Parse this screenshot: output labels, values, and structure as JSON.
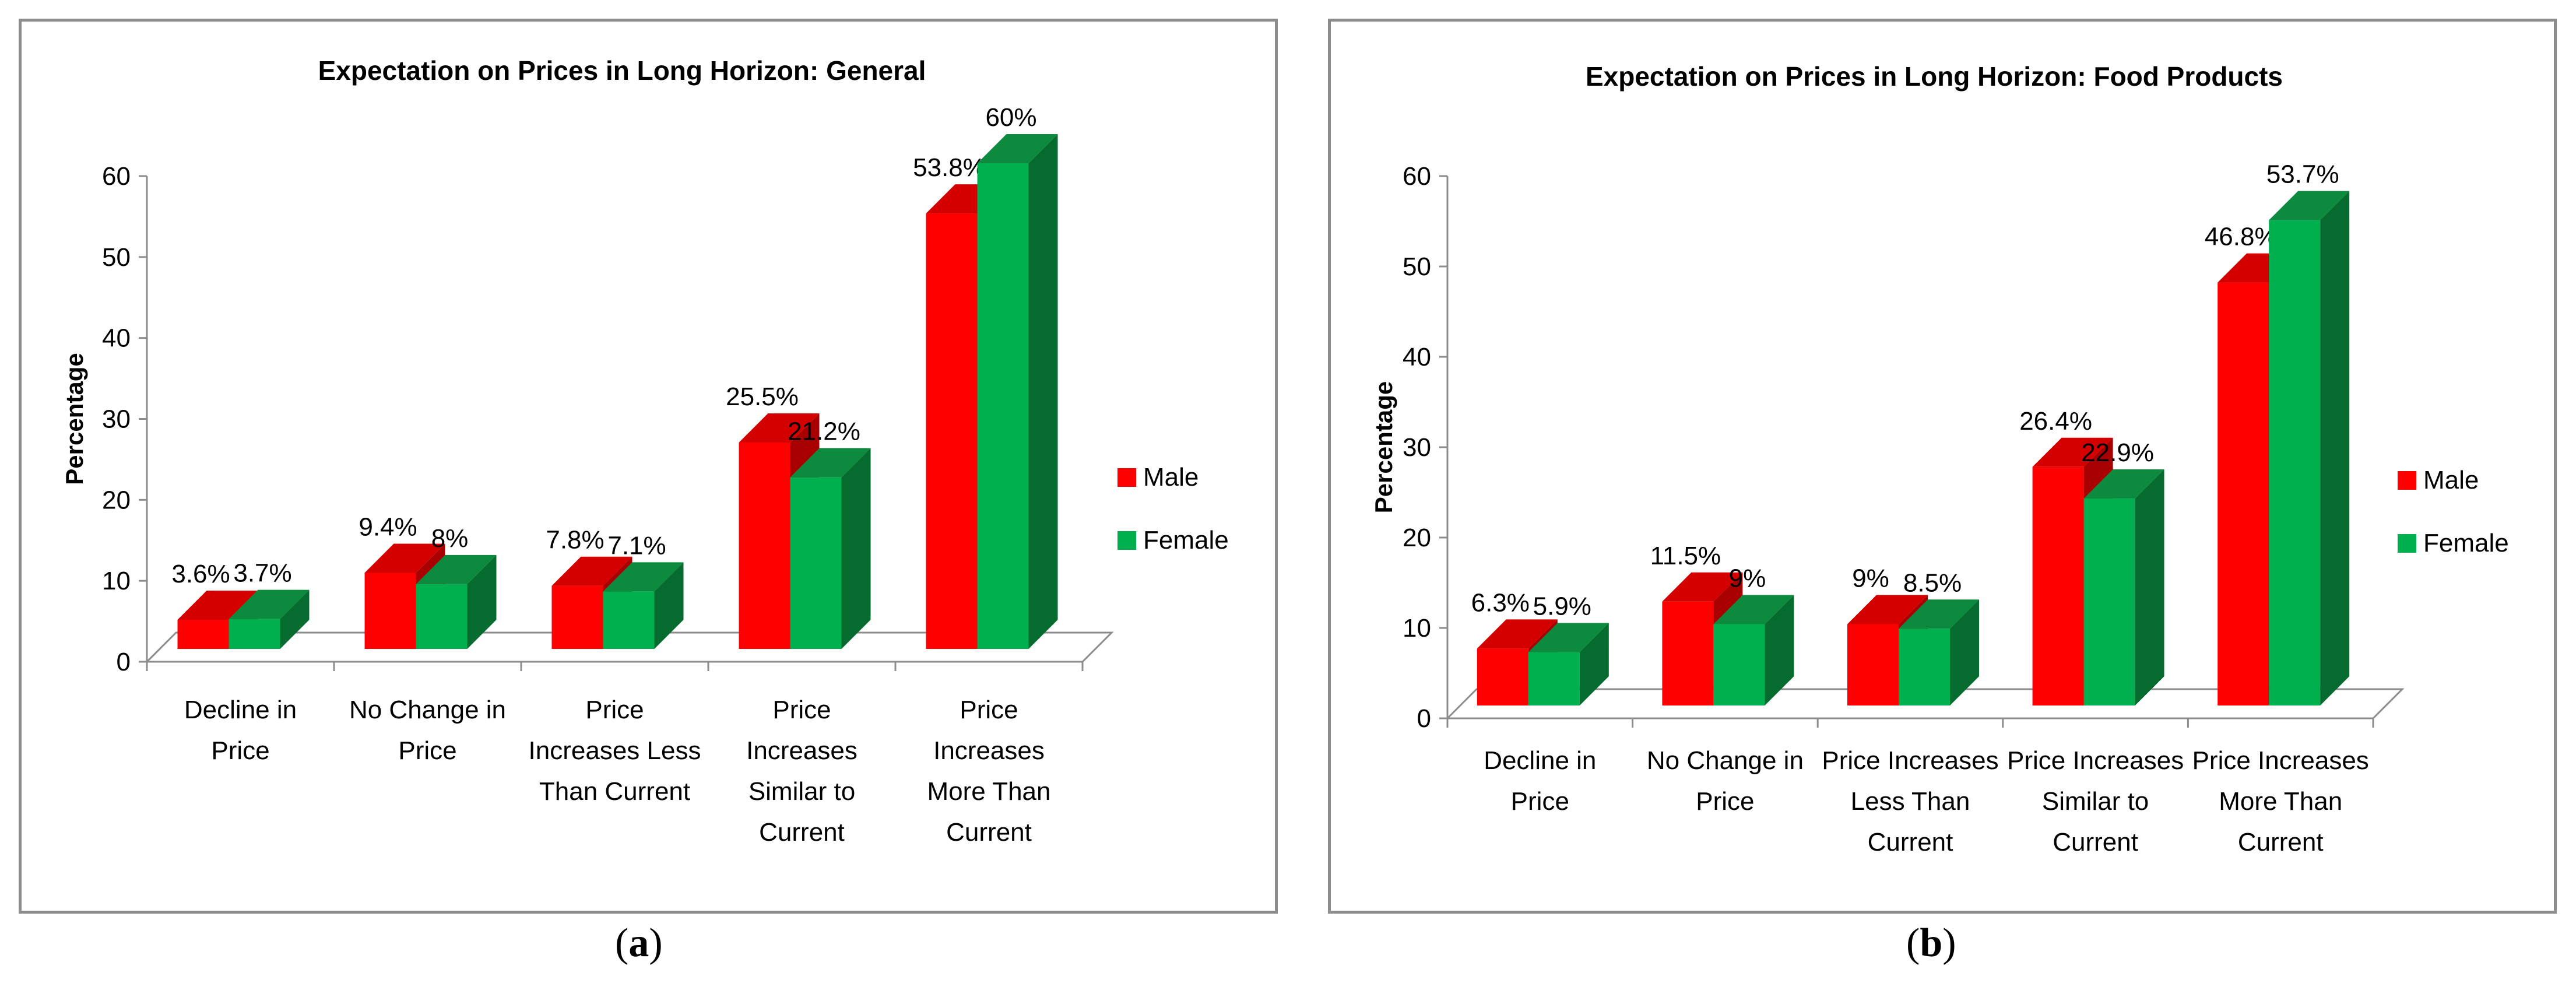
{
  "chart_data": [
    {
      "type": "bar",
      "title": "Expectation on Prices in Long Horizon: General",
      "ylabel": "Percentage",
      "xlabel": "",
      "ylim": [
        0,
        60
      ],
      "yticks": [
        "0",
        "10",
        "20",
        "30",
        "40",
        "50",
        "60"
      ],
      "categories": [
        [
          "Decline in",
          "Price"
        ],
        [
          "No Change in",
          "Price"
        ],
        [
          "Price",
          "Increases Less",
          "Than Current"
        ],
        [
          "Price",
          "Increases",
          "Similar to",
          "Current"
        ],
        [
          "Price",
          "Increases",
          "More Than",
          "Current"
        ]
      ],
      "series": [
        {
          "name": "Male",
          "values": [
            3.6,
            9.4,
            7.8,
            25.5,
            53.8
          ],
          "labels": [
            "3.6%",
            "9.4%",
            "7.8%",
            "25.5%",
            "53.8%"
          ]
        },
        {
          "name": "Female",
          "values": [
            3.7,
            8,
            7.1,
            21.2,
            60
          ],
          "labels": [
            "3.7%",
            "8%",
            "7.1%",
            "21.2%",
            "60%"
          ]
        }
      ],
      "legend_position": "right",
      "caption": "a"
    },
    {
      "type": "bar",
      "title": "Expectation on Prices in Long Horizon: Food Products",
      "ylabel": "Percentage",
      "xlabel": "",
      "ylim": [
        0,
        60
      ],
      "yticks": [
        "0",
        "10",
        "20",
        "30",
        "40",
        "50",
        "60"
      ],
      "categories": [
        [
          "Decline in",
          "Price"
        ],
        [
          "No Change in",
          "Price"
        ],
        [
          "Price Increases",
          "Less Than",
          "Current"
        ],
        [
          "Price Increases",
          "Similar to",
          "Current"
        ],
        [
          "Price Increases",
          "More Than",
          "Current"
        ]
      ],
      "series": [
        {
          "name": "Male",
          "values": [
            6.3,
            11.5,
            9,
            26.4,
            46.8
          ],
          "labels": [
            "6.3%",
            "11.5%",
            "9%",
            "26.4%",
            "46.8%"
          ]
        },
        {
          "name": "Female",
          "values": [
            5.9,
            9,
            8.5,
            22.9,
            53.7
          ],
          "labels": [
            "5.9%",
            "9%",
            "8.5%",
            "22.9%",
            "53.7%"
          ]
        }
      ],
      "legend_position": "right",
      "caption": "b"
    }
  ],
  "colors": {
    "male_front": "#ff0000",
    "male_top": "#d40000",
    "male_side": "#a80000",
    "female_front": "#00b04f",
    "female_top": "#0c8a3e",
    "female_side": "#066b2e",
    "axis": "#8c8c8c",
    "text": "#000000"
  }
}
